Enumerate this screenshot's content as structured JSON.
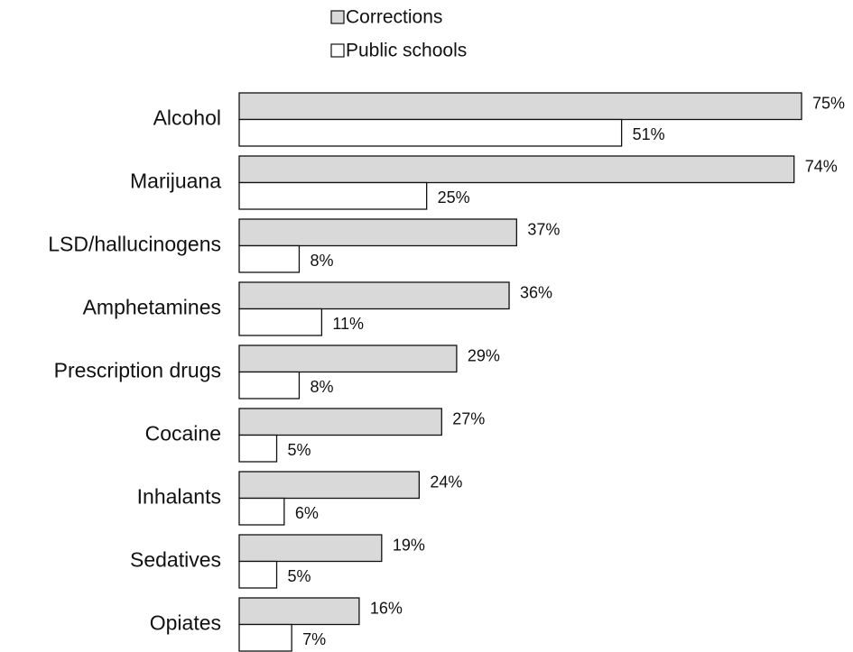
{
  "chart_data": {
    "type": "bar",
    "orientation": "horizontal",
    "categories": [
      "Alcohol",
      "Marijuana",
      "LSD/hallucinogens",
      "Amphetamines",
      "Prescription drugs",
      "Cocaine",
      "Inhalants",
      "Sedatives",
      "Opiates"
    ],
    "series": [
      {
        "name": "Corrections",
        "color": "#d9d9d9",
        "values": [
          75,
          74,
          37,
          36,
          29,
          27,
          24,
          19,
          16
        ],
        "value_labels": [
          "75%",
          "74%",
          "37%",
          "36%",
          "29%",
          "27%",
          "24%",
          "19%",
          "16%"
        ]
      },
      {
        "name": "Public schools",
        "color": "#ffffff",
        "values": [
          51,
          25,
          8,
          11,
          8,
          5,
          6,
          5,
          7
        ],
        "value_labels": [
          "51%",
          "25%",
          "8%",
          "11%",
          "8%",
          "5%",
          "6%",
          "5%",
          "7%"
        ]
      }
    ],
    "legend": "top"
  }
}
